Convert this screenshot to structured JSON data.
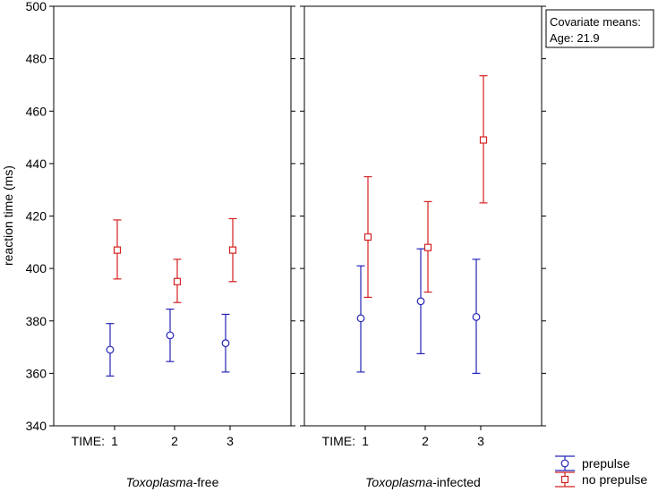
{
  "chart_data": {
    "type": "scatter",
    "ylabel": "reaction time (ms)",
    "ylim": [
      340,
      500
    ],
    "yticks": [
      340,
      360,
      380,
      400,
      420,
      440,
      460,
      480,
      500
    ],
    "x_prefix": "TIME:",
    "categories": [
      "1",
      "2",
      "3"
    ],
    "panels": [
      {
        "title_italic": "Toxoplasma",
        "title_rest": "-free",
        "series": [
          {
            "name": "prepulse",
            "marker": "circle",
            "color": "#2424b8",
            "mean": [
              369,
              374.5,
              371.5
            ],
            "lower": [
              359,
              364.5,
              360.5
            ],
            "upper": [
              379,
              384.5,
              382.5
            ]
          },
          {
            "name": "no prepulse",
            "marker": "square",
            "color": "#d42020",
            "mean": [
              407,
              395,
              407
            ],
            "lower": [
              396,
              387,
              395
            ],
            "upper": [
              418.5,
              403.5,
              419
            ]
          }
        ]
      },
      {
        "title_italic": "Toxoplasma",
        "title_rest": "-infected",
        "series": [
          {
            "name": "prepulse",
            "marker": "circle",
            "color": "#2424b8",
            "mean": [
              381,
              387.5,
              381.5
            ],
            "lower": [
              360.5,
              367.5,
              360
            ],
            "upper": [
              401,
              407.5,
              403.5
            ]
          },
          {
            "name": "no prepulse",
            "marker": "square",
            "color": "#d42020",
            "mean": [
              412,
              408,
              449
            ],
            "lower": [
              389,
              391,
              425
            ],
            "upper": [
              435,
              425.5,
              473.5
            ]
          }
        ]
      }
    ],
    "annotation": {
      "line1": "Covariate means:",
      "line2": "Age: 21.9"
    },
    "legend": [
      {
        "label": "prepulse",
        "marker": "circle",
        "color": "#2424b8"
      },
      {
        "label": "no prepulse",
        "marker": "square",
        "color": "#d42020"
      }
    ]
  }
}
